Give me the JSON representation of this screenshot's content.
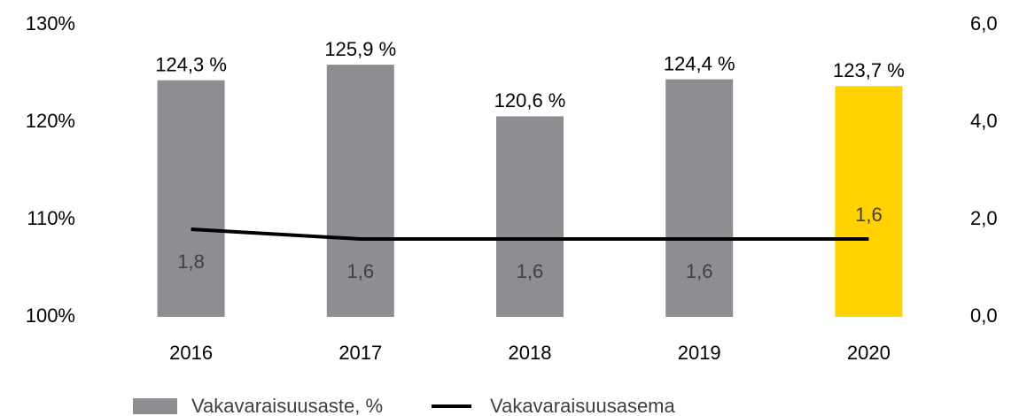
{
  "chart_data": {
    "type": "bar-line",
    "categories": [
      "2016",
      "2017",
      "2018",
      "2019",
      "2020"
    ],
    "series": [
      {
        "name": "Vakavaraisuusaste, %",
        "type": "bar",
        "color": "#8e8d92",
        "colors": [
          "#8e8d92",
          "#8e8d92",
          "#8e8d92",
          "#8e8d92",
          "#ffd200"
        ],
        "values": [
          124.3,
          125.9,
          120.6,
          124.4,
          123.7
        ],
        "value_labels": [
          "124,3 %",
          "125,9 %",
          "120,6 %",
          "124,4 %",
          "123,7 %"
        ]
      },
      {
        "name": "Vakavaraisuusasema",
        "type": "line",
        "axis": "y2",
        "color": "#000000",
        "values": [
          1.8,
          1.6,
          1.6,
          1.6,
          1.6
        ],
        "value_labels": [
          "1,8",
          "1,6",
          "1,6",
          "1,6",
          "1,6"
        ]
      }
    ],
    "ylim": [
      100,
      130
    ],
    "yticks": [
      {
        "value": 100,
        "label": "100%"
      },
      {
        "value": 110,
        "label": "110%"
      },
      {
        "value": 120,
        "label": "120%"
      },
      {
        "value": 130,
        "label": "130%"
      }
    ],
    "y2lim": [
      0,
      6
    ],
    "y2ticks": [
      {
        "value": 0,
        "label": "0,0"
      },
      {
        "value": 2,
        "label": "2,0"
      },
      {
        "value": 4,
        "label": "4,0"
      },
      {
        "value": 6,
        "label": "6,0"
      }
    ],
    "grid": false,
    "legend": "bottom"
  }
}
